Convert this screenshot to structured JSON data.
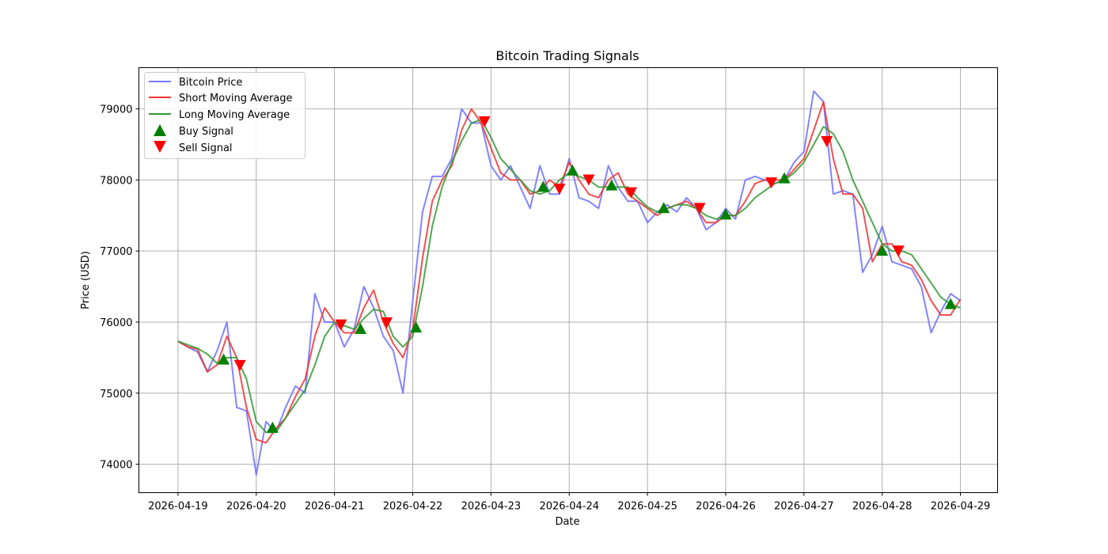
{
  "chart_data": {
    "type": "line",
    "title": "Bitcoin Trading Signals",
    "xlabel": "Date",
    "ylabel": "Price (USD)",
    "start": "2026-04-19 00:00",
    "step_hours": 3,
    "xlim_hours": [
      -12,
      251.4
    ],
    "ylim": [
      73600,
      79580
    ],
    "grid": true,
    "legend_placement": "upper-left",
    "x_ticks": [
      {
        "hour": 0,
        "label": "2026-04-19"
      },
      {
        "hour": 24,
        "label": "2026-04-20"
      },
      {
        "hour": 48,
        "label": "2026-04-21"
      },
      {
        "hour": 72,
        "label": "2026-04-22"
      },
      {
        "hour": 96,
        "label": "2026-04-23"
      },
      {
        "hour": 120,
        "label": "2026-04-24"
      },
      {
        "hour": 144,
        "label": "2026-04-25"
      },
      {
        "hour": 168,
        "label": "2026-04-26"
      },
      {
        "hour": 192,
        "label": "2026-04-27"
      },
      {
        "hour": 216,
        "label": "2026-04-28"
      },
      {
        "hour": 240,
        "label": "2026-04-29"
      }
    ],
    "y_ticks": [
      {
        "value": 74000,
        "label": "74000"
      },
      {
        "value": 75000,
        "label": "75000"
      },
      {
        "value": 76000,
        "label": "76000"
      },
      {
        "value": 77000,
        "label": "77000"
      },
      {
        "value": 78000,
        "label": "78000"
      },
      {
        "value": 79000,
        "label": "79000"
      }
    ],
    "series": [
      {
        "name": "Bitcoin Price",
        "color": "#7777ff",
        "values": [
          75730,
          75650,
          75580,
          75300,
          75600,
          76000,
          74800,
          74750,
          73850,
          74600,
          74450,
          74800,
          75100,
          75000,
          76400,
          76000,
          76000,
          75650,
          75900,
          76500,
          76200,
          75800,
          75600,
          75000,
          76300,
          77550,
          78050,
          78050,
          78300,
          79000,
          78800,
          78800,
          78200,
          78000,
          78200,
          77900,
          77600,
          78200,
          77800,
          77800,
          78300,
          77750,
          77700,
          77600,
          78200,
          77900,
          77700,
          77700,
          77400,
          77550,
          77650,
          77550,
          77750,
          77600,
          77300,
          77400,
          77600,
          77450,
          78000,
          78050,
          78000,
          77950,
          78000,
          78250,
          78400,
          79250,
          79100,
          77800,
          77850,
          77800,
          76700,
          76950,
          77350,
          76850,
          76800,
          76750,
          76500,
          75850,
          76150,
          76400,
          76300
        ]
      },
      {
        "name": "Short Moving Average",
        "color": "#ee3333",
        "values": [
          75730,
          75650,
          75620,
          75300,
          75400,
          75800,
          75500,
          74800,
          74350,
          74300,
          74500,
          74650,
          74950,
          75200,
          75800,
          76200,
          76000,
          75850,
          75850,
          76200,
          76450,
          76000,
          75700,
          75500,
          75900,
          76900,
          77700,
          78000,
          78200,
          78700,
          79000,
          78800,
          78450,
          78100,
          78000,
          78000,
          77800,
          77850,
          78000,
          77900,
          78250,
          78000,
          77800,
          77750,
          78000,
          78100,
          77800,
          77700,
          77600,
          77500,
          77600,
          77650,
          77700,
          77600,
          77400,
          77400,
          77500,
          77500,
          77700,
          77950,
          78000,
          78000,
          78000,
          78150,
          78300,
          78700,
          79100,
          78300,
          77800,
          77800,
          77600,
          76850,
          77100,
          77100,
          76850,
          76800,
          76600,
          76300,
          76100,
          76100,
          76320
        ]
      },
      {
        "name": "Long Moving Average",
        "color": "#339933",
        "values": [
          75730,
          75680,
          75630,
          75550,
          75420,
          75500,
          75500,
          75200,
          74600,
          74450,
          74450,
          74650,
          74850,
          75050,
          75400,
          75800,
          76000,
          75950,
          75900,
          76050,
          76180,
          76150,
          75800,
          75650,
          75800,
          76500,
          77350,
          77900,
          78250,
          78550,
          78800,
          78850,
          78600,
          78300,
          78150,
          78000,
          77850,
          77800,
          77850,
          78000,
          78100,
          78050,
          78000,
          77900,
          77900,
          77900,
          77900,
          77750,
          77620,
          77550,
          77600,
          77650,
          77650,
          77600,
          77500,
          77450,
          77500,
          77500,
          77600,
          77750,
          77850,
          77950,
          78000,
          78100,
          78250,
          78500,
          78750,
          78650,
          78400,
          78000,
          77700,
          77400,
          77100,
          77000,
          77000,
          76950,
          76750,
          76550,
          76350,
          76250,
          76200
        ]
      }
    ],
    "buy_signals": {
      "name": "Buy Signal",
      "color": "#008000",
      "points": [
        {
          "hour": 14,
          "price": 75470
        },
        {
          "hour": 29,
          "price": 74510
        },
        {
          "hour": 56,
          "price": 75900
        },
        {
          "hour": 73,
          "price": 75920
        },
        {
          "hour": 112,
          "price": 77900
        },
        {
          "hour": 121,
          "price": 78130
        },
        {
          "hour": 133,
          "price": 77920
        },
        {
          "hour": 149,
          "price": 77600
        },
        {
          "hour": 168,
          "price": 77510
        },
        {
          "hour": 186,
          "price": 78020
        },
        {
          "hour": 216,
          "price": 77000
        },
        {
          "hour": 237,
          "price": 76250
        }
      ]
    },
    "sell_signals": {
      "name": "Sell Signal",
      "color": "#ff0000",
      "points": [
        {
          "hour": 19,
          "price": 75400
        },
        {
          "hour": 50,
          "price": 75970
        },
        {
          "hour": 64,
          "price": 76000
        },
        {
          "hour": 94,
          "price": 78830
        },
        {
          "hour": 117,
          "price": 77880
        },
        {
          "hour": 126,
          "price": 78010
        },
        {
          "hour": 139,
          "price": 77830
        },
        {
          "hour": 160,
          "price": 77610
        },
        {
          "hour": 182,
          "price": 77970
        },
        {
          "hour": 199,
          "price": 78550
        },
        {
          "hour": 221,
          "price": 77010
        }
      ]
    }
  }
}
